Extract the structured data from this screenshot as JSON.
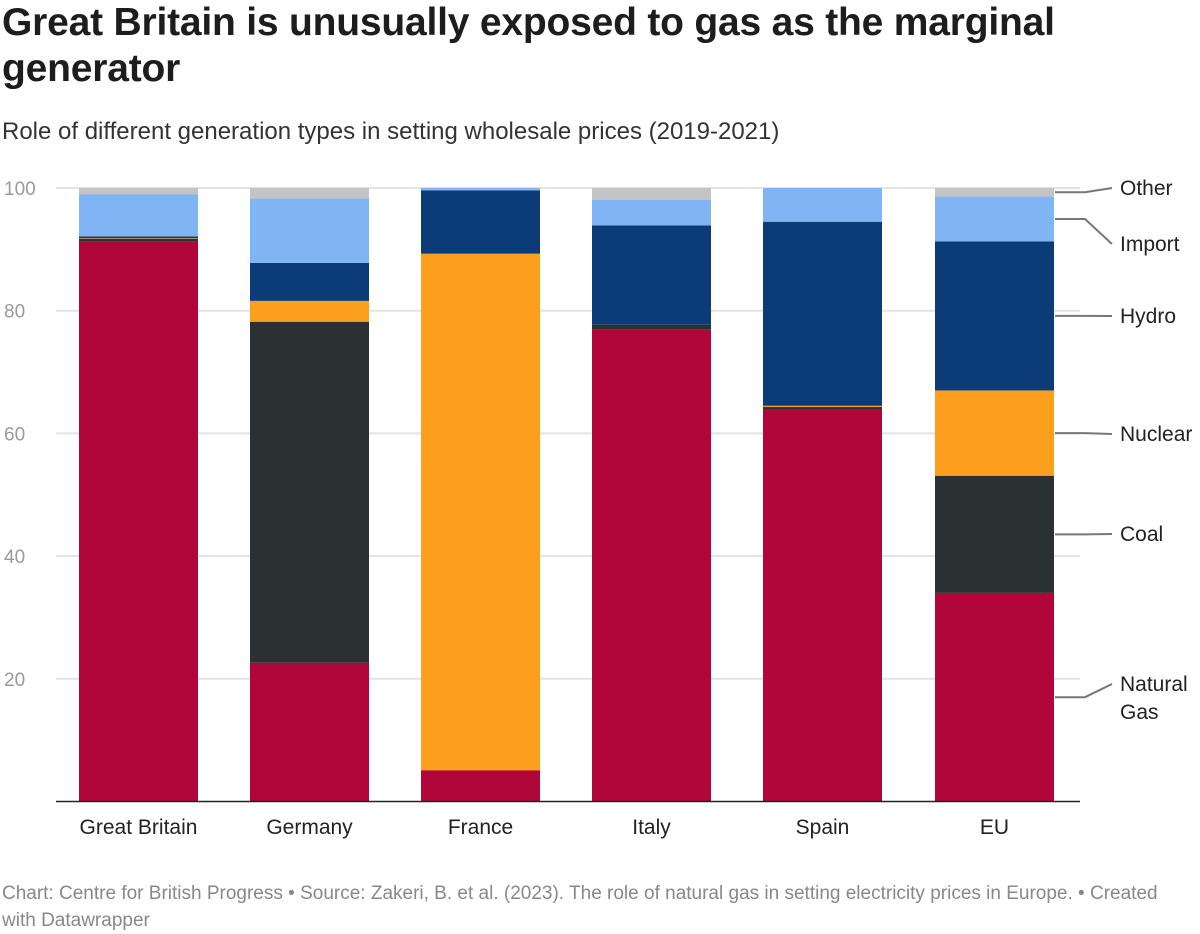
{
  "title": "Great Britain is unusually exposed to gas as the marginal generator",
  "subtitle": "Role of different generation types in setting wholesale prices (2019-2021)",
  "footer": "Chart: Centre for British Progress • Source: Zakeri, B. et al. (2023). The role of natural gas in setting electricity prices in Europe. • Created with Datawrapper",
  "chart_data": {
    "type": "bar",
    "stacked": true,
    "title": "Great Britain is unusually exposed to gas as the marginal generator",
    "subtitle": "Role of different generation types in setting wholesale prices (2019-2021)",
    "categories": [
      "Great Britain",
      "Germany",
      "France",
      "Italy",
      "Spain",
      "EU"
    ],
    "ylim": [
      0,
      100
    ],
    "yticks": [
      20,
      40,
      60,
      80,
      100
    ],
    "grid": true,
    "legend": "right (direct labels)",
    "series": [
      {
        "name": "Natural Gas",
        "color": "#b1063a",
        "values": [
          91.3,
          22.6,
          5.1,
          76.9,
          63.9,
          34.0
        ]
      },
      {
        "name": "Coal",
        "color": "#2a3132",
        "values": [
          0.4,
          55.6,
          0,
          0.8,
          0.4,
          19.1
        ]
      },
      {
        "name": "Nuclear",
        "color": "#fc9f1d",
        "values": [
          0.1,
          3.4,
          84.2,
          0,
          0.2,
          13.9
        ]
      },
      {
        "name": "Hydro",
        "color": "#0b3c77",
        "values": [
          0.3,
          6.2,
          10.3,
          16.2,
          30.0,
          24.3
        ]
      },
      {
        "name": "Import",
        "color": "#7fb5f2",
        "values": [
          6.9,
          10.5,
          0.4,
          4.2,
          5.5,
          7.3
        ]
      },
      {
        "name": "Other",
        "color": "#c4c4c4",
        "values": [
          1.0,
          1.7,
          0,
          1.9,
          0,
          1.4
        ]
      }
    ]
  }
}
